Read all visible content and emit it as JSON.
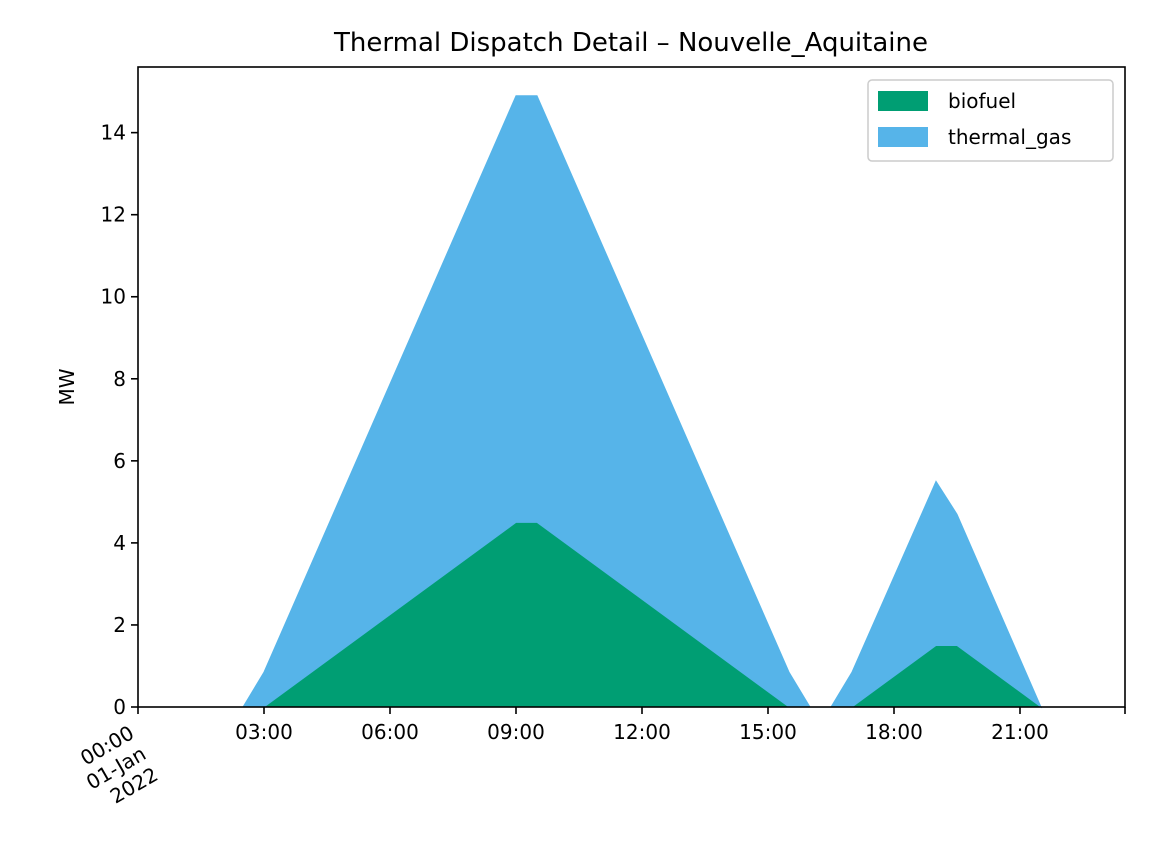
{
  "chart_data": {
    "type": "area",
    "stacked": true,
    "title": "Thermal Dispatch Detail – Nouvelle_Aquitaine",
    "xlabel": "",
    "ylabel": "MW",
    "x_unit": "hour of day, 01-Jan 2022",
    "xlim": [
      0,
      23.5
    ],
    "ylim": [
      0,
      15.6
    ],
    "x_ticks": [
      {
        "x": 0,
        "lines": [
          "00:00",
          "01-Jan",
          "2022"
        ],
        "rotated": true
      },
      {
        "x": 3,
        "lines": [
          "03:00"
        ]
      },
      {
        "x": 6,
        "lines": [
          "06:00"
        ]
      },
      {
        "x": 9,
        "lines": [
          "09:00"
        ]
      },
      {
        "x": 12,
        "lines": [
          "12:00"
        ]
      },
      {
        "x": 15,
        "lines": [
          "15:00"
        ]
      },
      {
        "x": 18,
        "lines": [
          "18:00"
        ]
      },
      {
        "x": 21,
        "lines": [
          "21:00"
        ]
      }
    ],
    "y_ticks": [
      {
        "y": 0,
        "label": "0"
      },
      {
        "y": 2,
        "label": "2"
      },
      {
        "y": 4,
        "label": "4"
      },
      {
        "y": 6,
        "label": "6"
      },
      {
        "y": 8,
        "label": "8"
      },
      {
        "y": 10,
        "label": "10"
      },
      {
        "y": 12,
        "label": "12"
      },
      {
        "y": 14,
        "label": "14"
      }
    ],
    "grid": false,
    "legend_position": "top-right",
    "series": [
      {
        "name": "biofuel",
        "color": "#009e73",
        "segments": [
          {
            "x": [
              3.0,
              9.0,
              9.5,
              15.5
            ],
            "y": [
              0,
              4.5,
              4.5,
              0
            ]
          },
          {
            "x": [
              17.0,
              19.0,
              19.5,
              21.5
            ],
            "y": [
              0,
              1.5,
              1.5,
              0
            ]
          }
        ]
      },
      {
        "name": "thermal_gas",
        "color": "#56b4e9",
        "segments": [
          {
            "x": [
              2.5,
              3.0,
              9.0,
              9.5,
              15.5,
              16.0
            ],
            "y": [
              0,
              0.85,
              10.4,
              10.4,
              0.85,
              0
            ]
          },
          {
            "x": [
              16.5,
              17.0,
              19.0,
              19.5,
              21.5
            ],
            "y": [
              0,
              0.85,
              4.0,
              3.2,
              0
            ]
          }
        ]
      }
    ]
  }
}
